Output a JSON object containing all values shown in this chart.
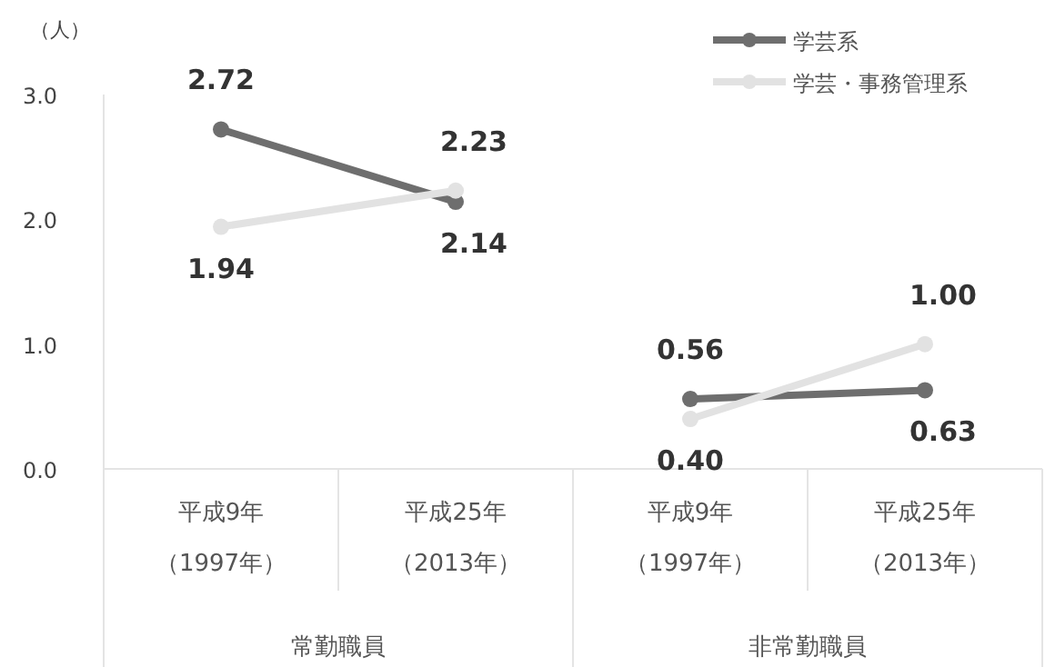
{
  "chart_data": {
    "type": "line",
    "ylabel": "（人）",
    "categories": [
      "平成9年（1997年）",
      "平成25年（2013年）",
      "平成9年（1997年）",
      "平成25年（2013年）"
    ],
    "series": [
      {
        "name": "学芸系",
        "color": "#6e6e6e",
        "values": [
          2.72,
          2.14,
          null,
          null
        ],
        "value_labels": [
          "2.72",
          "2.14",
          null,
          null
        ]
      },
      {
        "name": "学芸・事務管理系",
        "color": "#e2e2e2",
        "values": [
          1.94,
          2.23,
          null,
          null
        ],
        "value_labels": [
          "1.94",
          "2.23",
          null,
          null
        ]
      },
      {
        "color": "#6e6e6e",
        "values": [
          null,
          null,
          0.56,
          0.63
        ],
        "value_labels": [
          null,
          null,
          "0.56",
          "0.63"
        ]
      },
      {
        "color": "#e2e2e2",
        "values": [
          null,
          null,
          0.4,
          1.0
        ],
        "value_labels": [
          null,
          null,
          "0.40",
          "1.00"
        ]
      }
    ],
    "ylim": [
      0,
      3
    ],
    "yticks": [
      {
        "value": 0,
        "label": "0.0"
      },
      {
        "value": 1,
        "label": "1.0"
      },
      {
        "value": 2,
        "label": "2.0"
      },
      {
        "value": 3,
        "label": "3.0"
      }
    ],
    "annotations": [
      "常勤職員",
      "非常勤職員"
    ],
    "legend": "top right",
    "marker": "circle",
    "line_style": "solid",
    "grid": false
  }
}
